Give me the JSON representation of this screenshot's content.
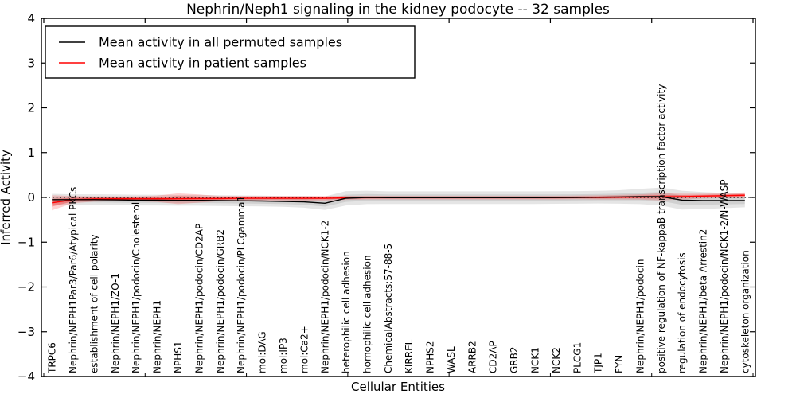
{
  "chart_data": {
    "type": "line",
    "title": "Nephrin/Neph1 signaling in the kidney podocyte -- 32 samples",
    "xlabel": "Cellular Entities",
    "ylabel": "Inferred Activity",
    "ylim": [
      -4,
      4
    ],
    "yticks": [
      -4,
      -3,
      -2,
      -1,
      0,
      1,
      2,
      3,
      4
    ],
    "grid": false,
    "legend_position": "upper left",
    "zero_reference_line": {
      "y": 0,
      "style": "dotted",
      "color": "#000000"
    },
    "colors": {
      "permuted_line": "#000000",
      "patient_line": "#ff0000",
      "axes": "#000000",
      "background": "#ffffff"
    },
    "categories": [
      "TRPC6",
      "Nephrin/NEPH1Par3/Par6/Atypical PKCs",
      "establishment of cell polarity",
      "Nephrin/NEPH1/ZO-1",
      "Nephrin/NEPH1/podocin/Cholesterol",
      "Nephrin/NEPH1",
      "NPHS1",
      "Nephrin/NEPH1/podocin/CD2AP",
      "Nephrin/NEPH1/podocin/GRB2",
      "Nephrin/NEPH1/podocin/PLCgamma1",
      "mol:DAG",
      "mol:IP3",
      "mol:Ca2+",
      "Nephrin/NEPH1/podocin/NCK1-2",
      "heterophilic cell adhesion",
      "homophilic cell adhesion",
      "ChemicalAbstracts:57-88-5",
      "KIRREL",
      "NPHS2",
      "WASL",
      "ARRB2",
      "CD2AP",
      "GRB2",
      "NCK1",
      "NCK2",
      "PLCG1",
      "TJP1",
      "FYN",
      "Nephrin/NEPH1/podocin",
      "positive regulation of NF-kappaB transcription factor activity",
      "regulation of endocytosis",
      "Nephrin/NEPH1/beta Arrestin2",
      "Nephrin/NEPH1/podocin/NCK1-2/N-WASP",
      "cytoskeleton organization"
    ],
    "series": [
      {
        "name": "Mean activity in all permuted samples",
        "color": "#000000",
        "values": [
          -0.05,
          -0.05,
          -0.05,
          -0.055,
          -0.06,
          -0.06,
          -0.065,
          -0.065,
          -0.07,
          -0.075,
          -0.08,
          -0.09,
          -0.1,
          -0.13,
          -0.02,
          0.0,
          -0.005,
          -0.005,
          -0.005,
          -0.005,
          -0.005,
          -0.005,
          -0.005,
          -0.005,
          -0.003,
          0.0,
          0.005,
          0.01,
          0.02,
          0.02,
          -0.06,
          -0.07,
          -0.07,
          -0.07
        ],
        "band_half_width": [
          0.13,
          0.12,
          0.12,
          0.12,
          0.12,
          0.12,
          0.12,
          0.12,
          0.12,
          0.12,
          0.12,
          0.12,
          0.13,
          0.15,
          0.16,
          0.15,
          0.14,
          0.14,
          0.14,
          0.14,
          0.14,
          0.14,
          0.14,
          0.14,
          0.14,
          0.14,
          0.14,
          0.15,
          0.17,
          0.2,
          0.21,
          0.19,
          0.17,
          0.15
        ]
      },
      {
        "name": "Mean activity in patient samples",
        "color": "#ff0000",
        "values": [
          -0.12,
          -0.05,
          -0.035,
          -0.03,
          -0.03,
          -0.03,
          -0.03,
          -0.025,
          -0.025,
          -0.02,
          -0.02,
          -0.02,
          -0.02,
          -0.02,
          -0.01,
          -0.005,
          -0.005,
          -0.005,
          -0.005,
          -0.005,
          -0.005,
          -0.005,
          -0.005,
          -0.005,
          -0.005,
          0.0,
          0.0,
          0.005,
          0.01,
          0.015,
          0.02,
          0.03,
          0.04,
          0.05
        ],
        "band_half_width": [
          0.17,
          0.08,
          0.06,
          0.055,
          0.055,
          0.07,
          0.12,
          0.09,
          0.055,
          0.05,
          0.05,
          0.05,
          0.05,
          0.05,
          0.045,
          0.04,
          0.04,
          0.04,
          0.04,
          0.04,
          0.04,
          0.04,
          0.04,
          0.04,
          0.04,
          0.04,
          0.045,
          0.05,
          0.06,
          0.08,
          0.065,
          0.055,
          0.055,
          0.06
        ]
      }
    ]
  }
}
